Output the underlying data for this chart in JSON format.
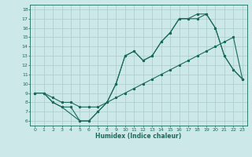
{
  "xlabel": "Humidex (Indice chaleur)",
  "bg_color": "#cce8e8",
  "grid_color": "#aacccc",
  "line_color": "#1a6b5a",
  "xlim": [
    -0.5,
    23.5
  ],
  "ylim": [
    5.5,
    18.5
  ],
  "xticks": [
    0,
    1,
    2,
    3,
    4,
    5,
    6,
    7,
    8,
    9,
    10,
    11,
    12,
    13,
    14,
    15,
    16,
    17,
    18,
    19,
    20,
    21,
    22,
    23
  ],
  "yticks": [
    6,
    7,
    8,
    9,
    10,
    11,
    12,
    13,
    14,
    15,
    16,
    17,
    18
  ],
  "line1_x": [
    0,
    1,
    2,
    3,
    4,
    5,
    6,
    7,
    8,
    9,
    10,
    11,
    12,
    13,
    14,
    15,
    16,
    17,
    18,
    19,
    20,
    21,
    22,
    23
  ],
  "line1_y": [
    9.0,
    9.0,
    8.0,
    7.5,
    7.5,
    6.0,
    6.0,
    7.0,
    8.0,
    10.0,
    13.0,
    13.5,
    12.5,
    13.0,
    14.5,
    15.5,
    17.0,
    17.0,
    17.0,
    17.5,
    16.0,
    13.0,
    11.5,
    10.5
  ],
  "line2_x": [
    0,
    1,
    2,
    3,
    4,
    5,
    6,
    7,
    8,
    9,
    10,
    11,
    12,
    13,
    14,
    15,
    16,
    17,
    18,
    19,
    20,
    21,
    22,
    23
  ],
  "line2_y": [
    9.0,
    9.0,
    8.5,
    8.0,
    8.0,
    7.5,
    7.5,
    7.5,
    8.0,
    8.5,
    9.0,
    9.5,
    10.0,
    10.5,
    11.0,
    11.5,
    12.0,
    12.5,
    13.0,
    13.5,
    14.0,
    14.5,
    15.0,
    10.5
  ],
  "line3_x": [
    0,
    1,
    2,
    3,
    5,
    6,
    7,
    8,
    9,
    10,
    11,
    12,
    13,
    14,
    15,
    16,
    17,
    18,
    19,
    20,
    21,
    22,
    23
  ],
  "line3_y": [
    9.0,
    9.0,
    8.0,
    7.5,
    6.0,
    6.0,
    7.0,
    8.0,
    10.0,
    13.0,
    13.5,
    12.5,
    13.0,
    14.5,
    15.5,
    17.0,
    17.0,
    17.5,
    17.5,
    16.0,
    13.0,
    11.5,
    10.5
  ]
}
